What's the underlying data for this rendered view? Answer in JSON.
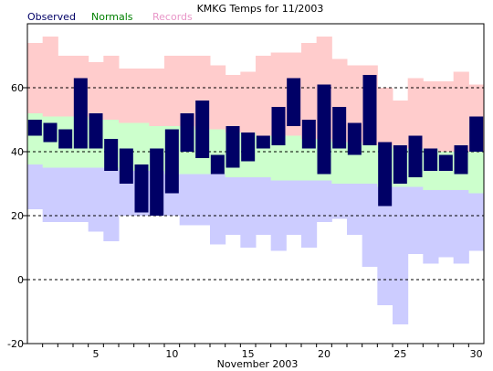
{
  "chart_data": {
    "type": "bar",
    "title": "KMKG Temps for 11/2003",
    "xlabel": "November 2003",
    "ylabel": "",
    "ylim": [
      -20,
      80
    ],
    "xlim": [
      1,
      30
    ],
    "grid": "dashed horizontal lines at 0, 20, 40, 60",
    "y_ticks": [
      -20,
      0,
      20,
      40,
      60
    ],
    "x_ticks": [
      5,
      10,
      15,
      20,
      25,
      30
    ],
    "legend": {
      "placement": "top-left",
      "entries": [
        {
          "label": "Observed",
          "color": "#000066"
        },
        {
          "label": "Normals",
          "color": "#008000"
        },
        {
          "label": "Records",
          "color": "#e896c8"
        }
      ]
    },
    "colors": {
      "record_fill": "#ffcccc",
      "normal_fill": "#ccffcc",
      "record_low_fill": "#ccccff",
      "observed_fill": "#000066"
    },
    "days": [
      1,
      2,
      3,
      4,
      5,
      6,
      7,
      8,
      9,
      10,
      11,
      12,
      13,
      14,
      15,
      16,
      17,
      18,
      19,
      20,
      21,
      22,
      23,
      24,
      25,
      26,
      27,
      28,
      29,
      30
    ],
    "series": [
      {
        "name": "Records",
        "kind": "record_high",
        "values": [
          74,
          76,
          70,
          70,
          68,
          70,
          66,
          66,
          66,
          70,
          70,
          70,
          67,
          64,
          65,
          70,
          71,
          71,
          74,
          76,
          69,
          67,
          67,
          60,
          56,
          63,
          62,
          62,
          65,
          61
        ]
      },
      {
        "name": "Normals",
        "kind": "normal_high",
        "values": [
          52,
          51,
          51,
          51,
          50,
          50,
          49,
          49,
          48,
          48,
          48,
          47,
          47,
          46,
          46,
          45,
          45,
          45,
          44,
          44,
          43,
          43,
          42,
          42,
          41,
          41,
          41,
          40,
          40,
          40
        ]
      },
      {
        "name": "Normals",
        "kind": "normal_low",
        "values": [
          36,
          35,
          35,
          35,
          35,
          35,
          34,
          34,
          34,
          33,
          33,
          33,
          33,
          32,
          32,
          32,
          31,
          31,
          31,
          31,
          30,
          30,
          30,
          29,
          29,
          29,
          28,
          28,
          28,
          27
        ]
      },
      {
        "name": "Records",
        "kind": "record_low",
        "values": [
          22,
          18,
          18,
          18,
          15,
          12,
          20,
          20,
          20,
          20,
          17,
          17,
          11,
          14,
          10,
          14,
          9,
          14,
          10,
          18,
          19,
          14,
          4,
          -8,
          -14,
          8,
          5,
          7,
          5,
          9
        ]
      },
      {
        "name": "Observed",
        "kind": "observed_high",
        "values": [
          50,
          49,
          47,
          63,
          52,
          44,
          41,
          36,
          41,
          47,
          52,
          56,
          39,
          48,
          46,
          45,
          54,
          63,
          50,
          61,
          54,
          49,
          64,
          43,
          42,
          45,
          41,
          39,
          42,
          51
        ]
      },
      {
        "name": "Observed",
        "kind": "observed_low",
        "values": [
          45,
          43,
          41,
          41,
          41,
          34,
          30,
          21,
          20,
          27,
          40,
          38,
          33,
          35,
          37,
          41,
          42,
          48,
          41,
          33,
          41,
          39,
          42,
          23,
          30,
          32,
          34,
          34,
          33,
          40
        ]
      }
    ]
  }
}
